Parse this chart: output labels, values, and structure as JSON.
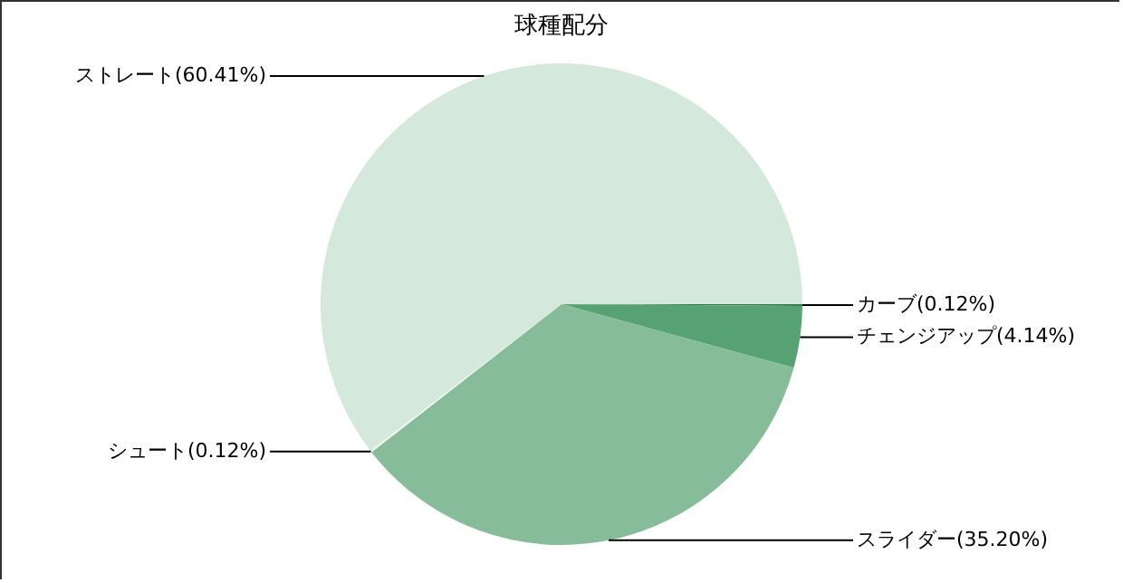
{
  "chart_data": {
    "type": "pie",
    "title": "球種配分",
    "categories": [
      "カーブ",
      "チェンジアップ",
      "スライダー",
      "シュート",
      "ストレート"
    ],
    "values": [
      0.12,
      4.14,
      35.2,
      0.12,
      60.41
    ],
    "colors": [
      "#2f7a4c",
      "#57a273",
      "#86bc9a",
      "#f4faf6",
      "#d5e8dc"
    ],
    "value_labels": [
      "(0.12%)",
      "(4.14%)",
      "(35.20%)",
      "(0.12%)",
      "(60.41%)"
    ]
  }
}
